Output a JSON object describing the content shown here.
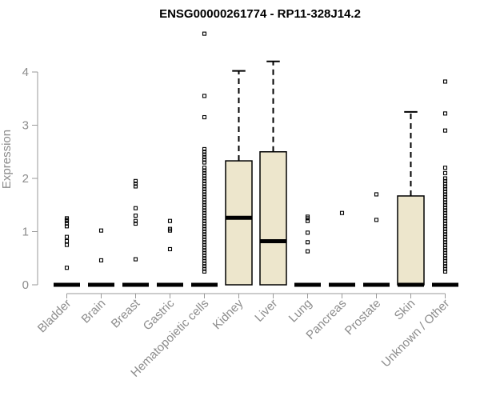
{
  "chart_data": {
    "type": "box",
    "title": "ENSG00000261774 - RP11-328J14.2",
    "xlabel": "",
    "ylabel": "Expression",
    "ylim": [
      0,
      4.75
    ],
    "yticks": [
      0,
      1,
      2,
      3,
      4
    ],
    "categories": [
      "Bladder",
      "Brain",
      "Breast",
      "Gastric",
      "Hematopoietic cells",
      "Kidney",
      "Liver",
      "Lung",
      "Pancreas",
      "Prostate",
      "Skin",
      "Unknown / Other"
    ],
    "box_fill": "#ede6cc",
    "boxes": [
      {
        "q1": 0,
        "median": 0,
        "q3": 0,
        "whisker_low": 0,
        "whisker_high": 0,
        "outliers": [
          0.32,
          0.75,
          0.82,
          0.9,
          1.1,
          1.15,
          1.2,
          1.22,
          1.25
        ]
      },
      {
        "q1": 0,
        "median": 0,
        "q3": 0,
        "whisker_low": 0,
        "whisker_high": 0,
        "outliers": [
          0.46,
          1.02
        ]
      },
      {
        "q1": 0,
        "median": 0,
        "q3": 0,
        "whisker_low": 0,
        "whisker_high": 0,
        "outliers": [
          0.48,
          1.15,
          1.2,
          1.3,
          1.44,
          1.85,
          1.9,
          1.95
        ]
      },
      {
        "q1": 0,
        "median": 0,
        "q3": 0,
        "whisker_low": 0,
        "whisker_high": 0,
        "outliers": [
          0.67,
          1.02,
          1.05,
          1.2
        ]
      },
      {
        "q1": 0,
        "median": 0,
        "q3": 0,
        "whisker_low": 0,
        "whisker_high": 0,
        "outliers": [
          0.25,
          0.3,
          0.35,
          0.4,
          0.45,
          0.5,
          0.55,
          0.6,
          0.65,
          0.7,
          0.75,
          0.8,
          0.85,
          0.9,
          0.95,
          1.0,
          1.05,
          1.1,
          1.15,
          1.2,
          1.25,
          1.3,
          1.35,
          1.4,
          1.45,
          1.5,
          1.55,
          1.6,
          1.65,
          1.7,
          1.75,
          1.8,
          1.85,
          1.9,
          1.95,
          2.0,
          2.05,
          2.1,
          2.15,
          2.2,
          2.3,
          2.35,
          2.4,
          2.45,
          2.5,
          2.55,
          3.15,
          3.55,
          4.72
        ]
      },
      {
        "q1": 0,
        "median": 1.26,
        "q3": 2.33,
        "whisker_low": 0,
        "whisker_high": 4.02,
        "outliers": []
      },
      {
        "q1": 0,
        "median": 0.82,
        "q3": 2.5,
        "whisker_low": 0,
        "whisker_high": 4.2,
        "outliers": []
      },
      {
        "q1": 0,
        "median": 0,
        "q3": 0,
        "whisker_low": 0,
        "whisker_high": 0,
        "outliers": [
          0.63,
          0.8,
          0.98,
          1.2,
          1.25,
          1.28
        ]
      },
      {
        "q1": 0,
        "median": 0,
        "q3": 0,
        "whisker_low": 0,
        "whisker_high": 0,
        "outliers": [
          1.35
        ]
      },
      {
        "q1": 0,
        "median": 0,
        "q3": 0,
        "whisker_low": 0,
        "whisker_high": 0,
        "outliers": [
          1.22,
          1.7
        ]
      },
      {
        "q1": 0,
        "median": 0,
        "q3": 1.67,
        "whisker_low": 0,
        "whisker_high": 3.25,
        "outliers": []
      },
      {
        "q1": 0,
        "median": 0,
        "q3": 0,
        "whisker_low": 0,
        "whisker_high": 0,
        "outliers": [
          0.25,
          0.3,
          0.35,
          0.4,
          0.45,
          0.5,
          0.55,
          0.6,
          0.65,
          0.7,
          0.75,
          0.8,
          0.85,
          0.9,
          0.95,
          1.0,
          1.05,
          1.1,
          1.15,
          1.2,
          1.25,
          1.3,
          1.35,
          1.4,
          1.45,
          1.5,
          1.55,
          1.6,
          1.65,
          1.7,
          1.75,
          1.8,
          1.85,
          1.9,
          1.95,
          2.0,
          2.1,
          2.2,
          2.9,
          3.22,
          3.82
        ]
      }
    ]
  }
}
